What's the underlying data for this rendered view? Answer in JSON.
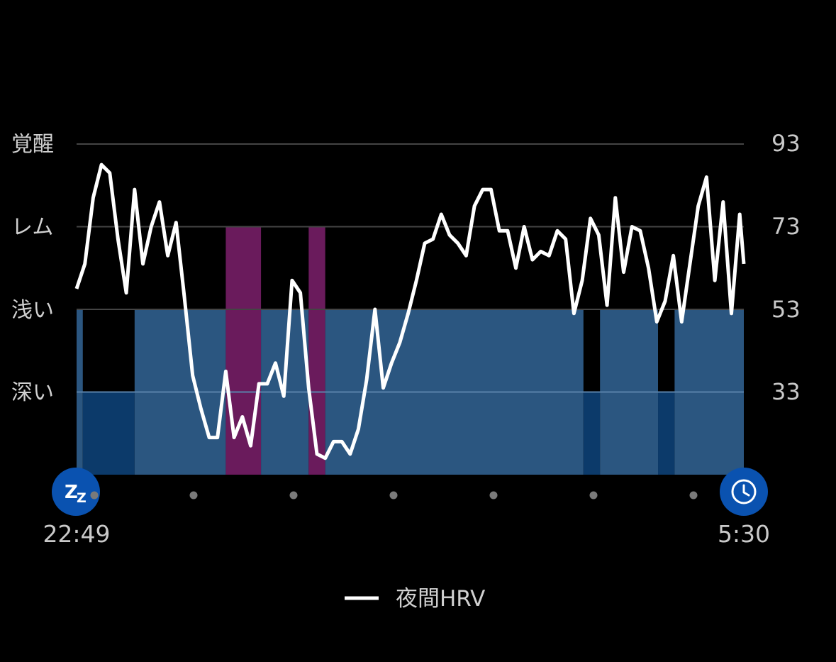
{
  "chart_data": {
    "type": "line",
    "stage_labels": [
      "覚醒",
      "レム",
      "浅い",
      "深い"
    ],
    "y_ticks": [
      "93",
      "73",
      "53",
      "33"
    ],
    "ylim": [
      13,
      93
    ],
    "time_start": "22:49",
    "time_end": "5:30",
    "legend": "夜間HRV",
    "colors": {
      "hrv_line": "#ffffff",
      "light": "#2b5680",
      "deep": "#0c3a6a",
      "rem": "#6a1b5c",
      "awake": "#000000",
      "gridline": "#444444",
      "icon_bg": "#0a52b0"
    },
    "x_range": [
      0,
      161
    ],
    "sleep_stages": [
      {
        "stage": "light",
        "start": 0,
        "end": 1.5
      },
      {
        "stage": "deep",
        "start": 1.5,
        "end": 14
      },
      {
        "stage": "light",
        "start": 14,
        "end": 36
      },
      {
        "stage": "rem",
        "start": 36,
        "end": 44.5
      },
      {
        "stage": "light",
        "start": 44.5,
        "end": 56
      },
      {
        "stage": "rem",
        "start": 56,
        "end": 60
      },
      {
        "stage": "light",
        "start": 60,
        "end": 122.3
      },
      {
        "stage": "deep",
        "start": 122.3,
        "end": 126.3
      },
      {
        "stage": "light",
        "start": 126.3,
        "end": 140.3
      },
      {
        "stage": "deep",
        "start": 140.3,
        "end": 144.3
      },
      {
        "stage": "light",
        "start": 144.3,
        "end": 161
      }
    ],
    "hrv": {
      "name": "夜間HRV",
      "x": [
        0,
        2,
        4,
        6,
        8,
        10,
        12,
        14,
        16,
        18,
        20,
        22,
        24,
        26,
        28,
        30,
        32,
        34,
        36,
        38,
        40,
        42,
        44,
        46,
        48,
        50,
        52,
        54,
        56,
        58,
        60,
        62,
        64,
        66,
        68,
        70,
        72,
        74,
        76,
        78,
        80,
        82,
        84,
        86,
        88,
        90,
        92,
        94,
        96,
        98,
        100,
        102,
        104,
        106,
        108,
        110,
        112,
        114,
        116,
        118,
        120,
        122,
        124,
        126,
        128,
        130,
        132,
        134,
        136,
        138,
        140,
        142,
        144,
        146,
        148,
        150,
        152,
        154,
        156,
        158,
        160,
        161
      ],
      "values": [
        58,
        64,
        80,
        88,
        86,
        70,
        57,
        82,
        64,
        73,
        79,
        66,
        74,
        56,
        37,
        29,
        22,
        22,
        38,
        22,
        27,
        20,
        35,
        35,
        40,
        32,
        60,
        57,
        34,
        18,
        17,
        21,
        21,
        18,
        24,
        36,
        53,
        34,
        40,
        45,
        52,
        60,
        69,
        70,
        76,
        71,
        69,
        66,
        78,
        82,
        82,
        72,
        72,
        63,
        73,
        65,
        67,
        66,
        72,
        70,
        52,
        60,
        75,
        71,
        54,
        80,
        62,
        73,
        72,
        63,
        50,
        55,
        66,
        50,
        64,
        78,
        85,
        60,
        79,
        52,
        76,
        64
      ]
    }
  }
}
